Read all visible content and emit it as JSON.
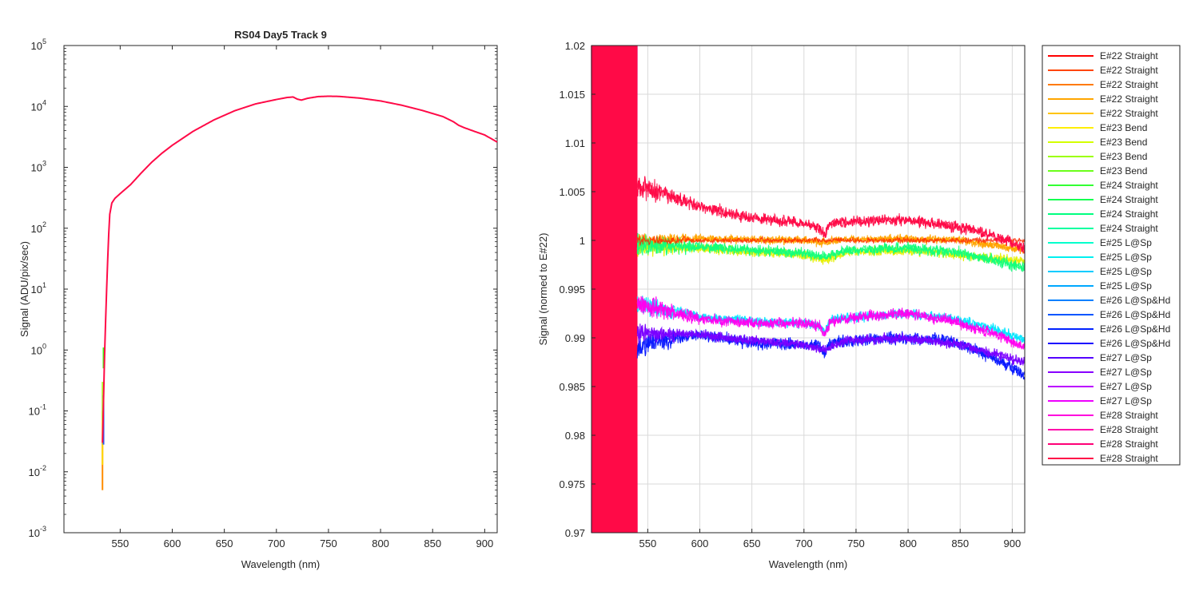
{
  "chart_data": [
    {
      "type": "line",
      "title": "RS04 Day5 Track 9",
      "xlabel": "Wavelength (nm)",
      "ylabel": "Signal (ADU/pix/sec)",
      "yscale": "log",
      "xlim": [
        496,
        912
      ],
      "ylim": [
        0.001,
        100000
      ],
      "xticks": [
        "550",
        "600",
        "650",
        "700",
        "750",
        "800",
        "850",
        "900"
      ],
      "yticks": [
        {
          "base": "10",
          "exp": "-3"
        },
        {
          "base": "10",
          "exp": "-2"
        },
        {
          "base": "10",
          "exp": "-1"
        },
        {
          "base": "10",
          "exp": "0"
        },
        {
          "base": "10",
          "exp": "1"
        },
        {
          "base": "10",
          "exp": "2"
        },
        {
          "base": "10",
          "exp": "3"
        },
        {
          "base": "10",
          "exp": "4"
        },
        {
          "base": "10",
          "exp": "5"
        }
      ],
      "grid": false,
      "series": [
        {
          "color": "#ff0a47",
          "x": [
            533,
            534,
            535,
            536,
            537,
            538,
            539,
            540,
            542,
            545,
            550,
            560,
            570,
            580,
            590,
            600,
            620,
            640,
            660,
            680,
            700,
            710,
            716,
            720,
            724,
            730,
            740,
            750,
            760,
            780,
            800,
            820,
            840,
            860,
            870,
            875,
            880,
            890,
            900,
            912
          ],
          "y": [
            0.03,
            0.15,
            0.8,
            3,
            10,
            30,
            80,
            170,
            260,
            310,
            370,
            520,
            800,
            1200,
            1700,
            2300,
            3900,
            6000,
            8500,
            11000,
            13000,
            14000,
            14300,
            13200,
            12700,
            13600,
            14500,
            14700,
            14600,
            13700,
            12300,
            10500,
            8600,
            6800,
            5600,
            4900,
            4500,
            3900,
            3400,
            2600
          ]
        }
      ],
      "spikes": [
        {
          "color": "#ff8c00",
          "x": 533,
          "ymin": 0.005,
          "ymax": 0.03
        },
        {
          "color": "#ffd700",
          "x": 533,
          "ymin": 0.013,
          "ymax": 0.1
        },
        {
          "color": "#adff2f",
          "x": 533,
          "ymin": 0.07,
          "ymax": 0.3
        },
        {
          "color": "#1e5aff",
          "x": 534,
          "ymin": 0.028,
          "ymax": 0.18
        },
        {
          "color": "#39ff14",
          "x": 534,
          "ymin": 0.5,
          "ymax": 1.1
        }
      ]
    },
    {
      "type": "line",
      "xlabel": "Wavelength (nm)",
      "ylabel": "Signal (normed to E#22)",
      "xlim": [
        496,
        912
      ],
      "ylim": [
        0.97,
        1.02
      ],
      "xticks": [
        "550",
        "600",
        "650",
        "700",
        "750",
        "800",
        "850",
        "900"
      ],
      "yticks": [
        "0.97",
        "0.975",
        "0.98",
        "0.985",
        "0.99",
        "0.995",
        "1",
        "1.005",
        "1.01",
        "1.015",
        "1.02"
      ],
      "grid": true,
      "legend_position": "outside-right",
      "noisy_region": [
        496,
        540
      ],
      "series": [
        {
          "name": "E#22 Straight",
          "color": "#ff0000",
          "group": "ref"
        },
        {
          "name": "E#22 Straight",
          "color": "#ff4500",
          "group": "ref"
        },
        {
          "name": "E#22 Straight",
          "color": "#ff7a00",
          "group": "ref"
        },
        {
          "name": "E#22 Straight",
          "color": "#ffa500",
          "group": "orange"
        },
        {
          "name": "E#22 Straight",
          "color": "#ffc400",
          "group": "orange"
        },
        {
          "name": "E#23 Bend",
          "color": "#ffee00",
          "group": "yellow"
        },
        {
          "name": "E#23 Bend",
          "color": "#d4ff00",
          "group": "yellow"
        },
        {
          "name": "E#23 Bend",
          "color": "#9cff00",
          "group": "green"
        },
        {
          "name": "E#23 Bend",
          "color": "#6bff1a",
          "group": "green"
        },
        {
          "name": "E#24 Straight",
          "color": "#33ff33",
          "group": "green"
        },
        {
          "name": "E#24 Straight",
          "color": "#14ff50",
          "group": "green"
        },
        {
          "name": "E#24 Straight",
          "color": "#00ff7f",
          "group": "green"
        },
        {
          "name": "E#24 Straight",
          "color": "#00ffa0",
          "group": "green"
        },
        {
          "name": "E#25 L@Sp",
          "color": "#00ffcc",
          "group": "cyan"
        },
        {
          "name": "E#25 L@Sp",
          "color": "#00f0f0",
          "group": "cyan"
        },
        {
          "name": "E#25 L@Sp",
          "color": "#00ccff",
          "group": "cyan"
        },
        {
          "name": "E#25 L@Sp",
          "color": "#00a8ff",
          "group": "cyan"
        },
        {
          "name": "E#26 L@Sp&Hd",
          "color": "#0080ff",
          "group": "blue"
        },
        {
          "name": "E#26 L@Sp&Hd",
          "color": "#0055ff",
          "group": "blue"
        },
        {
          "name": "E#26 L@Sp&Hd",
          "color": "#0022ff",
          "group": "blue"
        },
        {
          "name": "E#26 L@Sp&Hd",
          "color": "#1a00ff",
          "group": "blue"
        },
        {
          "name": "E#27 L@Sp",
          "color": "#5500ff",
          "group": "purple"
        },
        {
          "name": "E#27 L@Sp",
          "color": "#8800ff",
          "group": "magenta"
        },
        {
          "name": "E#27 L@Sp",
          "color": "#bb00ff",
          "group": "magenta"
        },
        {
          "name": "E#27 L@Sp",
          "color": "#ee00ff",
          "group": "magenta"
        },
        {
          "name": "E#28 Straight",
          "color": "#ff00dd",
          "group": "magenta"
        },
        {
          "name": "E#28 Straight",
          "color": "#ff00aa",
          "group": "red"
        },
        {
          "name": "E#28 Straight",
          "color": "#ff0077",
          "group": "red"
        },
        {
          "name": "E#28 Straight",
          "color": "#ff0a47",
          "group": "red"
        }
      ],
      "group_profiles": {
        "red": {
          "color": "#ff0a47",
          "x": [
            540,
            560,
            580,
            600,
            620,
            640,
            660,
            680,
            700,
            715,
            720,
            725,
            740,
            760,
            780,
            800,
            820,
            840,
            860,
            880,
            900,
            912
          ],
          "y": [
            1.0055,
            1.005,
            1.0042,
            1.0035,
            1.003,
            1.0025,
            1.0022,
            1.002,
            1.0017,
            1.0013,
            1.0005,
            1.0018,
            1.0019,
            1.002,
            1.002,
            1.0021,
            1.0018,
            1.0015,
            1.0012,
            1.0005,
            0.9998,
            0.9992
          ],
          "noise": 0.0008
        },
        "orange": {
          "color": "#ffa500",
          "x": [
            540,
            600,
            650,
            700,
            720,
            740,
            800,
            850,
            912
          ],
          "y": [
            1.0,
            1.0002,
            1.0001,
            1.0,
            0.9998,
            1.0001,
            1.0002,
            1.0,
            0.999
          ],
          "noise": 0.0006
        },
        "yellow": {
          "color": "#e6f000",
          "x": [
            540,
            600,
            650,
            700,
            720,
            740,
            800,
            850,
            912
          ],
          "y": [
            0.9993,
            0.9992,
            0.9988,
            0.9985,
            0.998,
            0.9988,
            0.999,
            0.9985,
            0.9978
          ],
          "noise": 0.0007
        },
        "green": {
          "color": "#14ff7a",
          "x": [
            540,
            600,
            650,
            700,
            720,
            740,
            800,
            850,
            880,
            912
          ],
          "y": [
            0.9995,
            0.9993,
            0.999,
            0.9987,
            0.9983,
            0.999,
            0.9992,
            0.9988,
            0.998,
            0.9972
          ],
          "noise": 0.0008
        },
        "cyan": {
          "color": "#00e6ff",
          "x": [
            540,
            560,
            600,
            650,
            700,
            715,
            720,
            725,
            760,
            800,
            840,
            880,
            912
          ],
          "y": [
            0.9935,
            0.993,
            0.9922,
            0.9917,
            0.9915,
            0.9913,
            0.9905,
            0.9918,
            0.9922,
            0.9925,
            0.992,
            0.991,
            0.9898
          ],
          "noise": 0.0007
        },
        "magenta": {
          "color": "#ff00f0",
          "x": [
            540,
            560,
            600,
            650,
            700,
            715,
            720,
            725,
            760,
            800,
            840,
            880,
            912
          ],
          "y": [
            0.9935,
            0.993,
            0.992,
            0.9915,
            0.9915,
            0.9912,
            0.9903,
            0.9917,
            0.9922,
            0.9925,
            0.9918,
            0.9905,
            0.989
          ],
          "noise": 0.0008
        },
        "purple": {
          "color": "#7a00ff",
          "x": [
            540,
            600,
            650,
            700,
            720,
            740,
            800,
            850,
            912
          ],
          "y": [
            0.9905,
            0.9903,
            0.9897,
            0.9893,
            0.9888,
            0.9897,
            0.99,
            0.9893,
            0.9875
          ],
          "noise": 0.0007
        },
        "blue": {
          "color": "#0a1aff",
          "x": [
            540,
            560,
            600,
            650,
            700,
            715,
            720,
            725,
            760,
            800,
            840,
            870,
            890,
            912
          ],
          "y": [
            0.989,
            0.9898,
            0.9903,
            0.9895,
            0.9893,
            0.9892,
            0.9882,
            0.9895,
            0.9898,
            0.99,
            0.9897,
            0.9885,
            0.9875,
            0.9862
          ],
          "noise": 0.0009
        },
        "ref": {
          "color": "#ff2a00",
          "x": [
            540,
            912
          ],
          "y": [
            1.0,
            1.0
          ],
          "noise": 0.0004
        }
      }
    }
  ]
}
